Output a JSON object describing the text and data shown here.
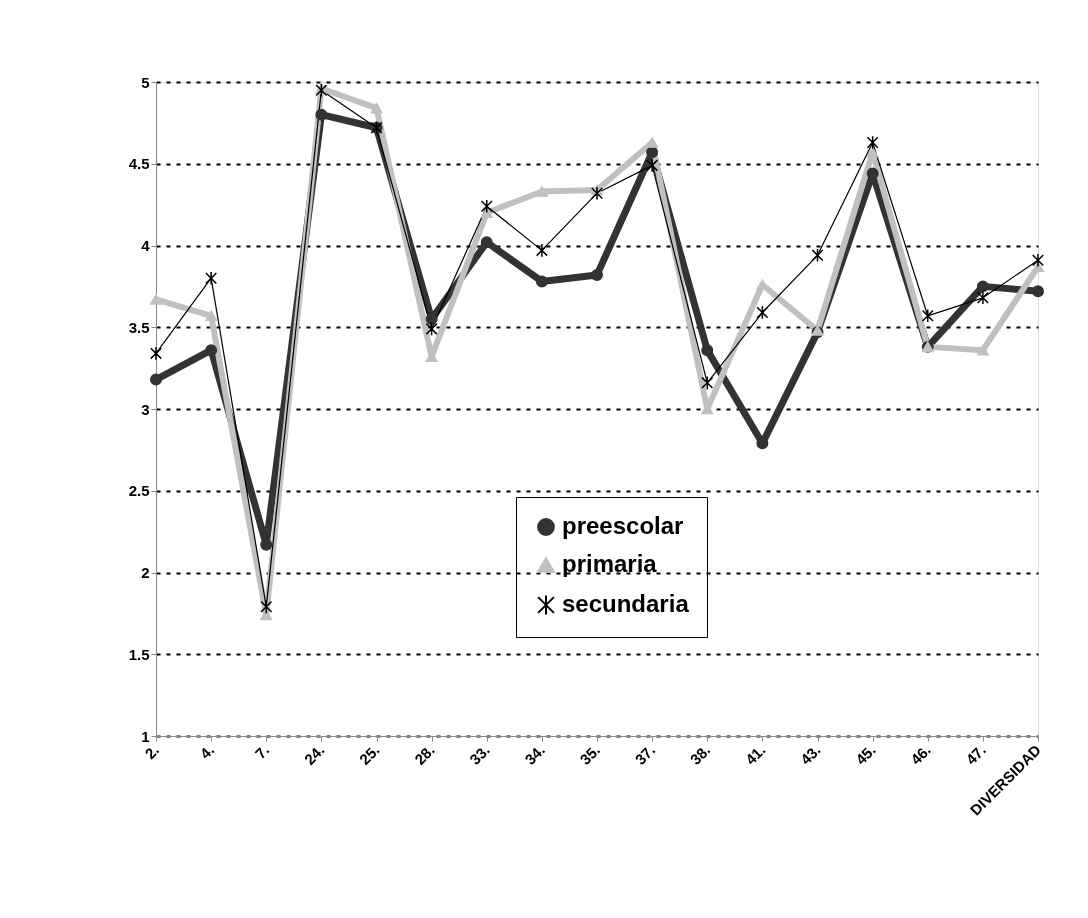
{
  "chart_data": {
    "type": "line",
    "categories": [
      "2.",
      "4.",
      "7.",
      "24.",
      "25.",
      "28.",
      "33.",
      "34.",
      "35.",
      "37.",
      "38.",
      "41.",
      "43.",
      "45.",
      "46.",
      "47.",
      "DIVERSIDAD"
    ],
    "series": [
      {
        "name": "preescolar",
        "color": "#333333",
        "marker": "circle",
        "values": [
          3.18,
          3.36,
          2.17,
          4.8,
          4.72,
          3.55,
          4.02,
          3.78,
          3.82,
          4.57,
          3.36,
          2.79,
          3.47,
          4.44,
          3.38,
          3.75,
          3.72
        ]
      },
      {
        "name": "primaria",
        "color": "#c0c0c0",
        "marker": "triangle",
        "values": [
          3.67,
          3.57,
          1.74,
          4.96,
          4.84,
          3.32,
          4.2,
          4.33,
          4.34,
          4.63,
          3.0,
          3.76,
          3.48,
          4.57,
          3.38,
          3.36,
          3.87
        ]
      },
      {
        "name": "secundaria",
        "color": "#000000",
        "marker": "cross",
        "values": [
          3.34,
          3.8,
          1.79,
          4.95,
          4.72,
          3.49,
          4.24,
          3.97,
          4.32,
          4.49,
          3.16,
          3.59,
          3.94,
          4.63,
          3.57,
          3.68,
          3.91
        ]
      }
    ],
    "ylim": [
      1,
      5
    ],
    "yticks": [
      1,
      1.5,
      2,
      2.5,
      3,
      3.5,
      4,
      4.5,
      5
    ],
    "grid": "y",
    "legend": "bottom"
  }
}
